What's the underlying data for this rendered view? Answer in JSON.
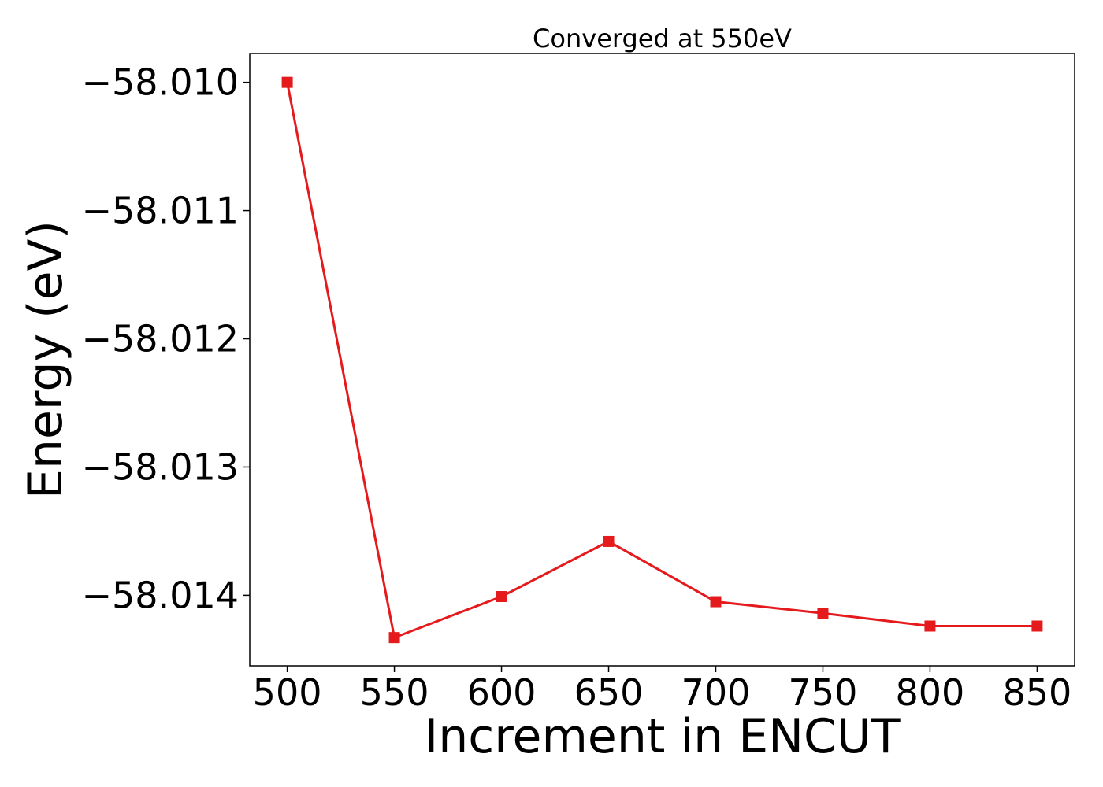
{
  "chart_data": {
    "type": "line",
    "title": "Converged at 550eV",
    "xlabel": "Increment in ENCUT",
    "ylabel": "Energy (eV)",
    "x": [
      500,
      550,
      600,
      650,
      700,
      750,
      800,
      850
    ],
    "series": [
      {
        "values": [
          -58.01,
          -58.01433,
          -58.01401,
          -58.01358,
          -58.01405,
          -58.01414,
          -58.01424,
          -58.01424
        ]
      }
    ],
    "x_ticks": [
      500,
      550,
      600,
      650,
      700,
      750,
      800,
      850
    ],
    "x_tick_labels": [
      "500",
      "550",
      "600",
      "650",
      "700",
      "750",
      "800",
      "850"
    ],
    "y_ticks": [
      -58.01,
      -58.011,
      -58.012,
      -58.013,
      -58.014
    ],
    "y_tick_labels": [
      "−58.010",
      "−58.011",
      "−58.012",
      "−58.013",
      "−58.014"
    ],
    "xlim": [
      482.5,
      867.5
    ],
    "ylim": [
      -58.01455,
      -58.009775
    ],
    "line_color": "#e41a1c",
    "marker": "square",
    "grid": false
  }
}
